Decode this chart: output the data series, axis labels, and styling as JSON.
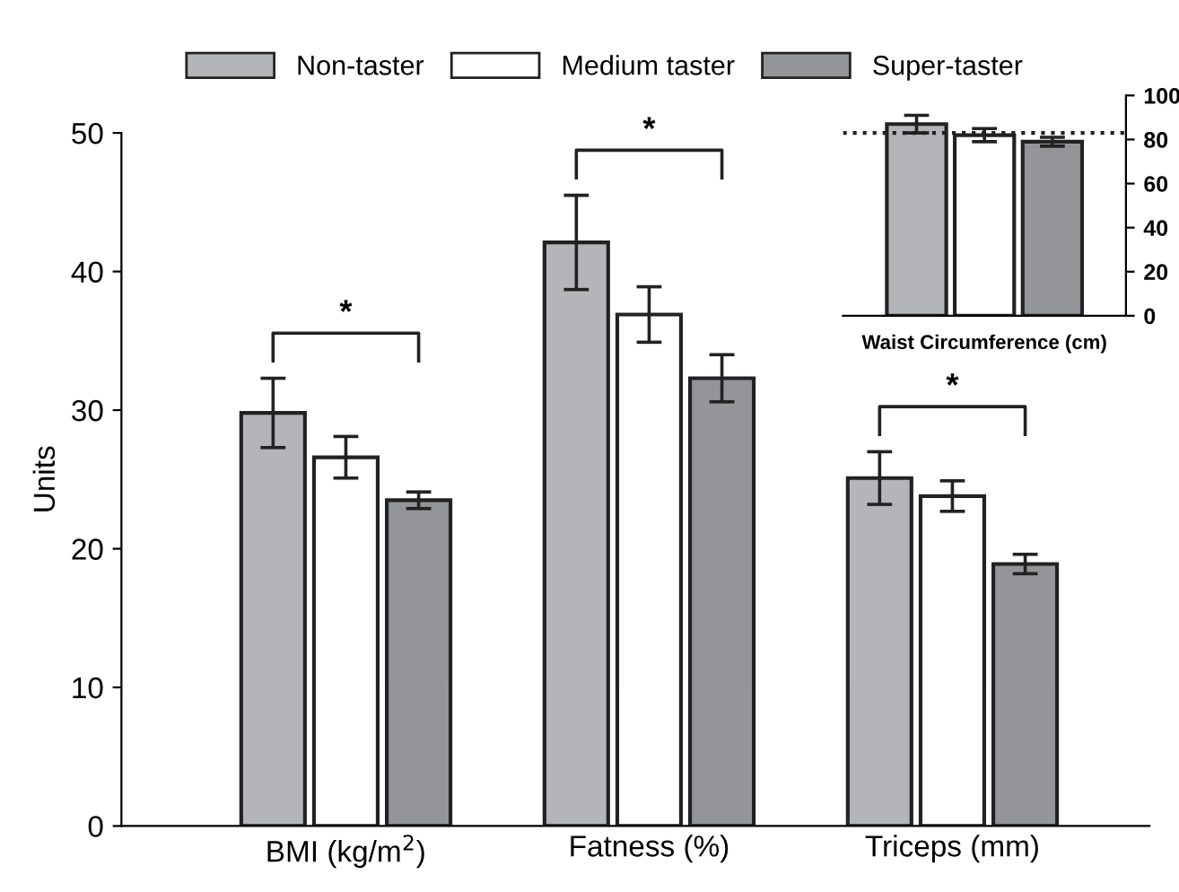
{
  "chart_data": [
    {
      "type": "bar",
      "ylabel": "Units",
      "categories": [
        "BMI (kg/m$^{2}$)",
        "Fatness (%)",
        "Triceps (mm)"
      ],
      "series": [
        {
          "name": "Non-taster",
          "color": "#b4b5b9",
          "values": [
            29.8,
            42.1,
            25.1
          ],
          "errors": [
            2.5,
            3.4,
            1.9
          ]
        },
        {
          "name": "Medium taster",
          "color": "#ffffff",
          "values": [
            26.6,
            36.9,
            23.8
          ],
          "errors": [
            1.5,
            2.0,
            1.1
          ]
        },
        {
          "name": "Super-taster",
          "color": "#939598",
          "values": [
            23.5,
            32.3,
            18.9
          ],
          "errors": [
            0.6,
            1.7,
            0.7
          ]
        }
      ],
      "ylim": [
        0,
        50
      ],
      "yticks": [
        0,
        10,
        20,
        30,
        40,
        50
      ],
      "grid": false,
      "legend": "top",
      "annotations": [
        "*",
        "*",
        "*"
      ]
    },
    {
      "type": "bar",
      "xlabel": "Waist Circumference (cm)",
      "categories": [
        null
      ],
      "series": [
        {
          "color": "#b4b5b9",
          "values": [
            87
          ],
          "errors": [
            4
          ]
        },
        {
          "color": "#ffffff",
          "values": [
            82
          ],
          "errors": [
            3
          ]
        },
        {
          "color": "#939598",
          "values": [
            79
          ],
          "errors": [
            2
          ]
        }
      ],
      "ylim": [
        0,
        100
      ],
      "yticks": [
        0,
        20,
        40,
        60,
        80,
        100
      ],
      "grid": false,
      "legend": false,
      "ref_lines": [
        {
          "axis": "y",
          "value": 83,
          "line_style": "dotted"
        }
      ]
    }
  ]
}
